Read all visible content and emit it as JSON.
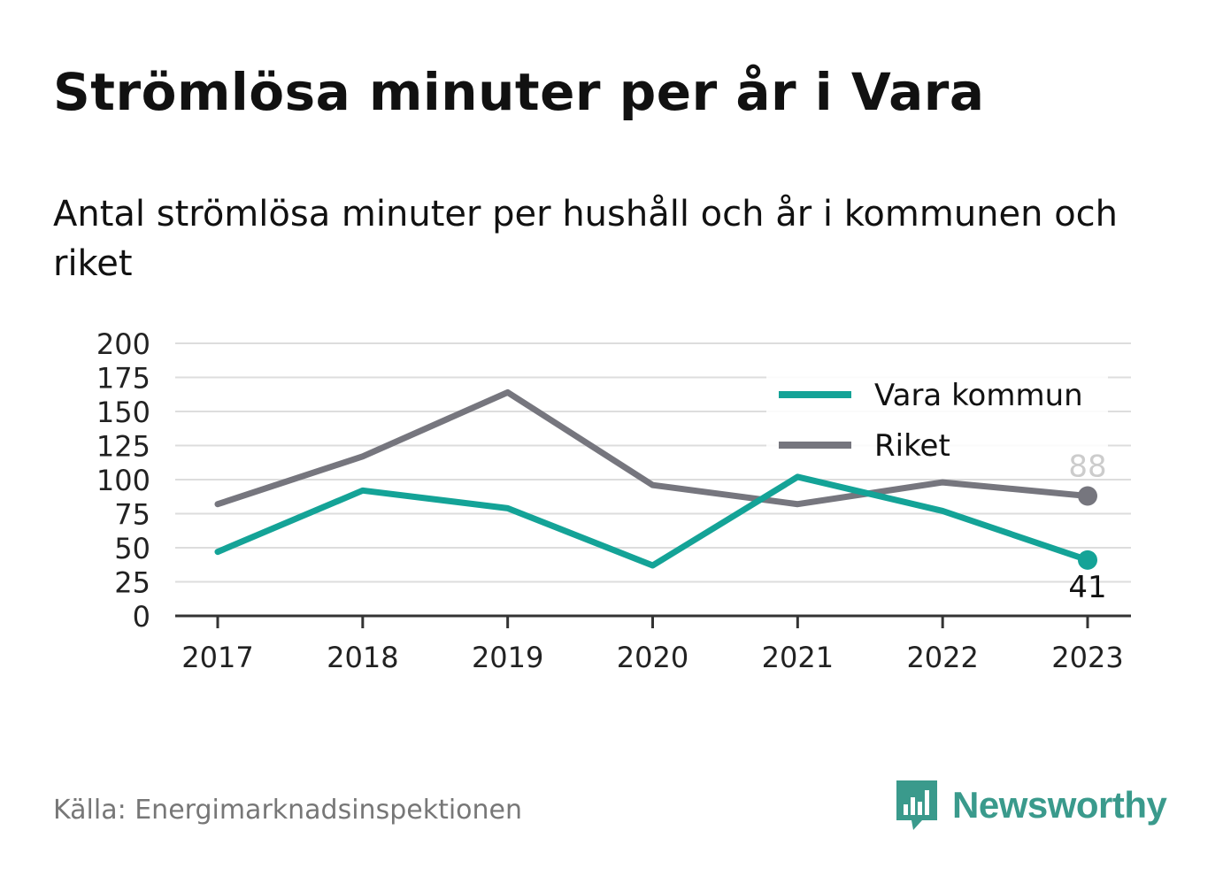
{
  "title": "Strömlösa minuter per år i Vara",
  "subtitle": "Antal strömlösa minuter per hushåll och år i kommunen och riket",
  "source": "Källa: Energimarknadsinspektionen",
  "brand": {
    "name": "Newsworthy",
    "logo_icon": "bar-chart-speech-bubble-icon",
    "color": "#3a9a8c"
  },
  "chart_data": {
    "type": "line",
    "x": [
      "2017",
      "2018",
      "2019",
      "2020",
      "2021",
      "2022",
      "2023"
    ],
    "ylim": [
      0,
      200
    ],
    "yticks": [
      "0",
      "25",
      "50",
      "75",
      "100",
      "125",
      "150",
      "175",
      "200"
    ],
    "grid": true,
    "legend_position": "top-right",
    "series": [
      {
        "name": "Vara kommun",
        "color": "#14a397",
        "values": [
          47,
          92,
          79,
          37,
          102,
          77,
          41
        ],
        "end_label": "41"
      },
      {
        "name": "Riket",
        "color": "#76767e",
        "values": [
          82,
          117,
          164,
          96,
          82,
          98,
          88
        ],
        "end_label": "88"
      }
    ]
  }
}
